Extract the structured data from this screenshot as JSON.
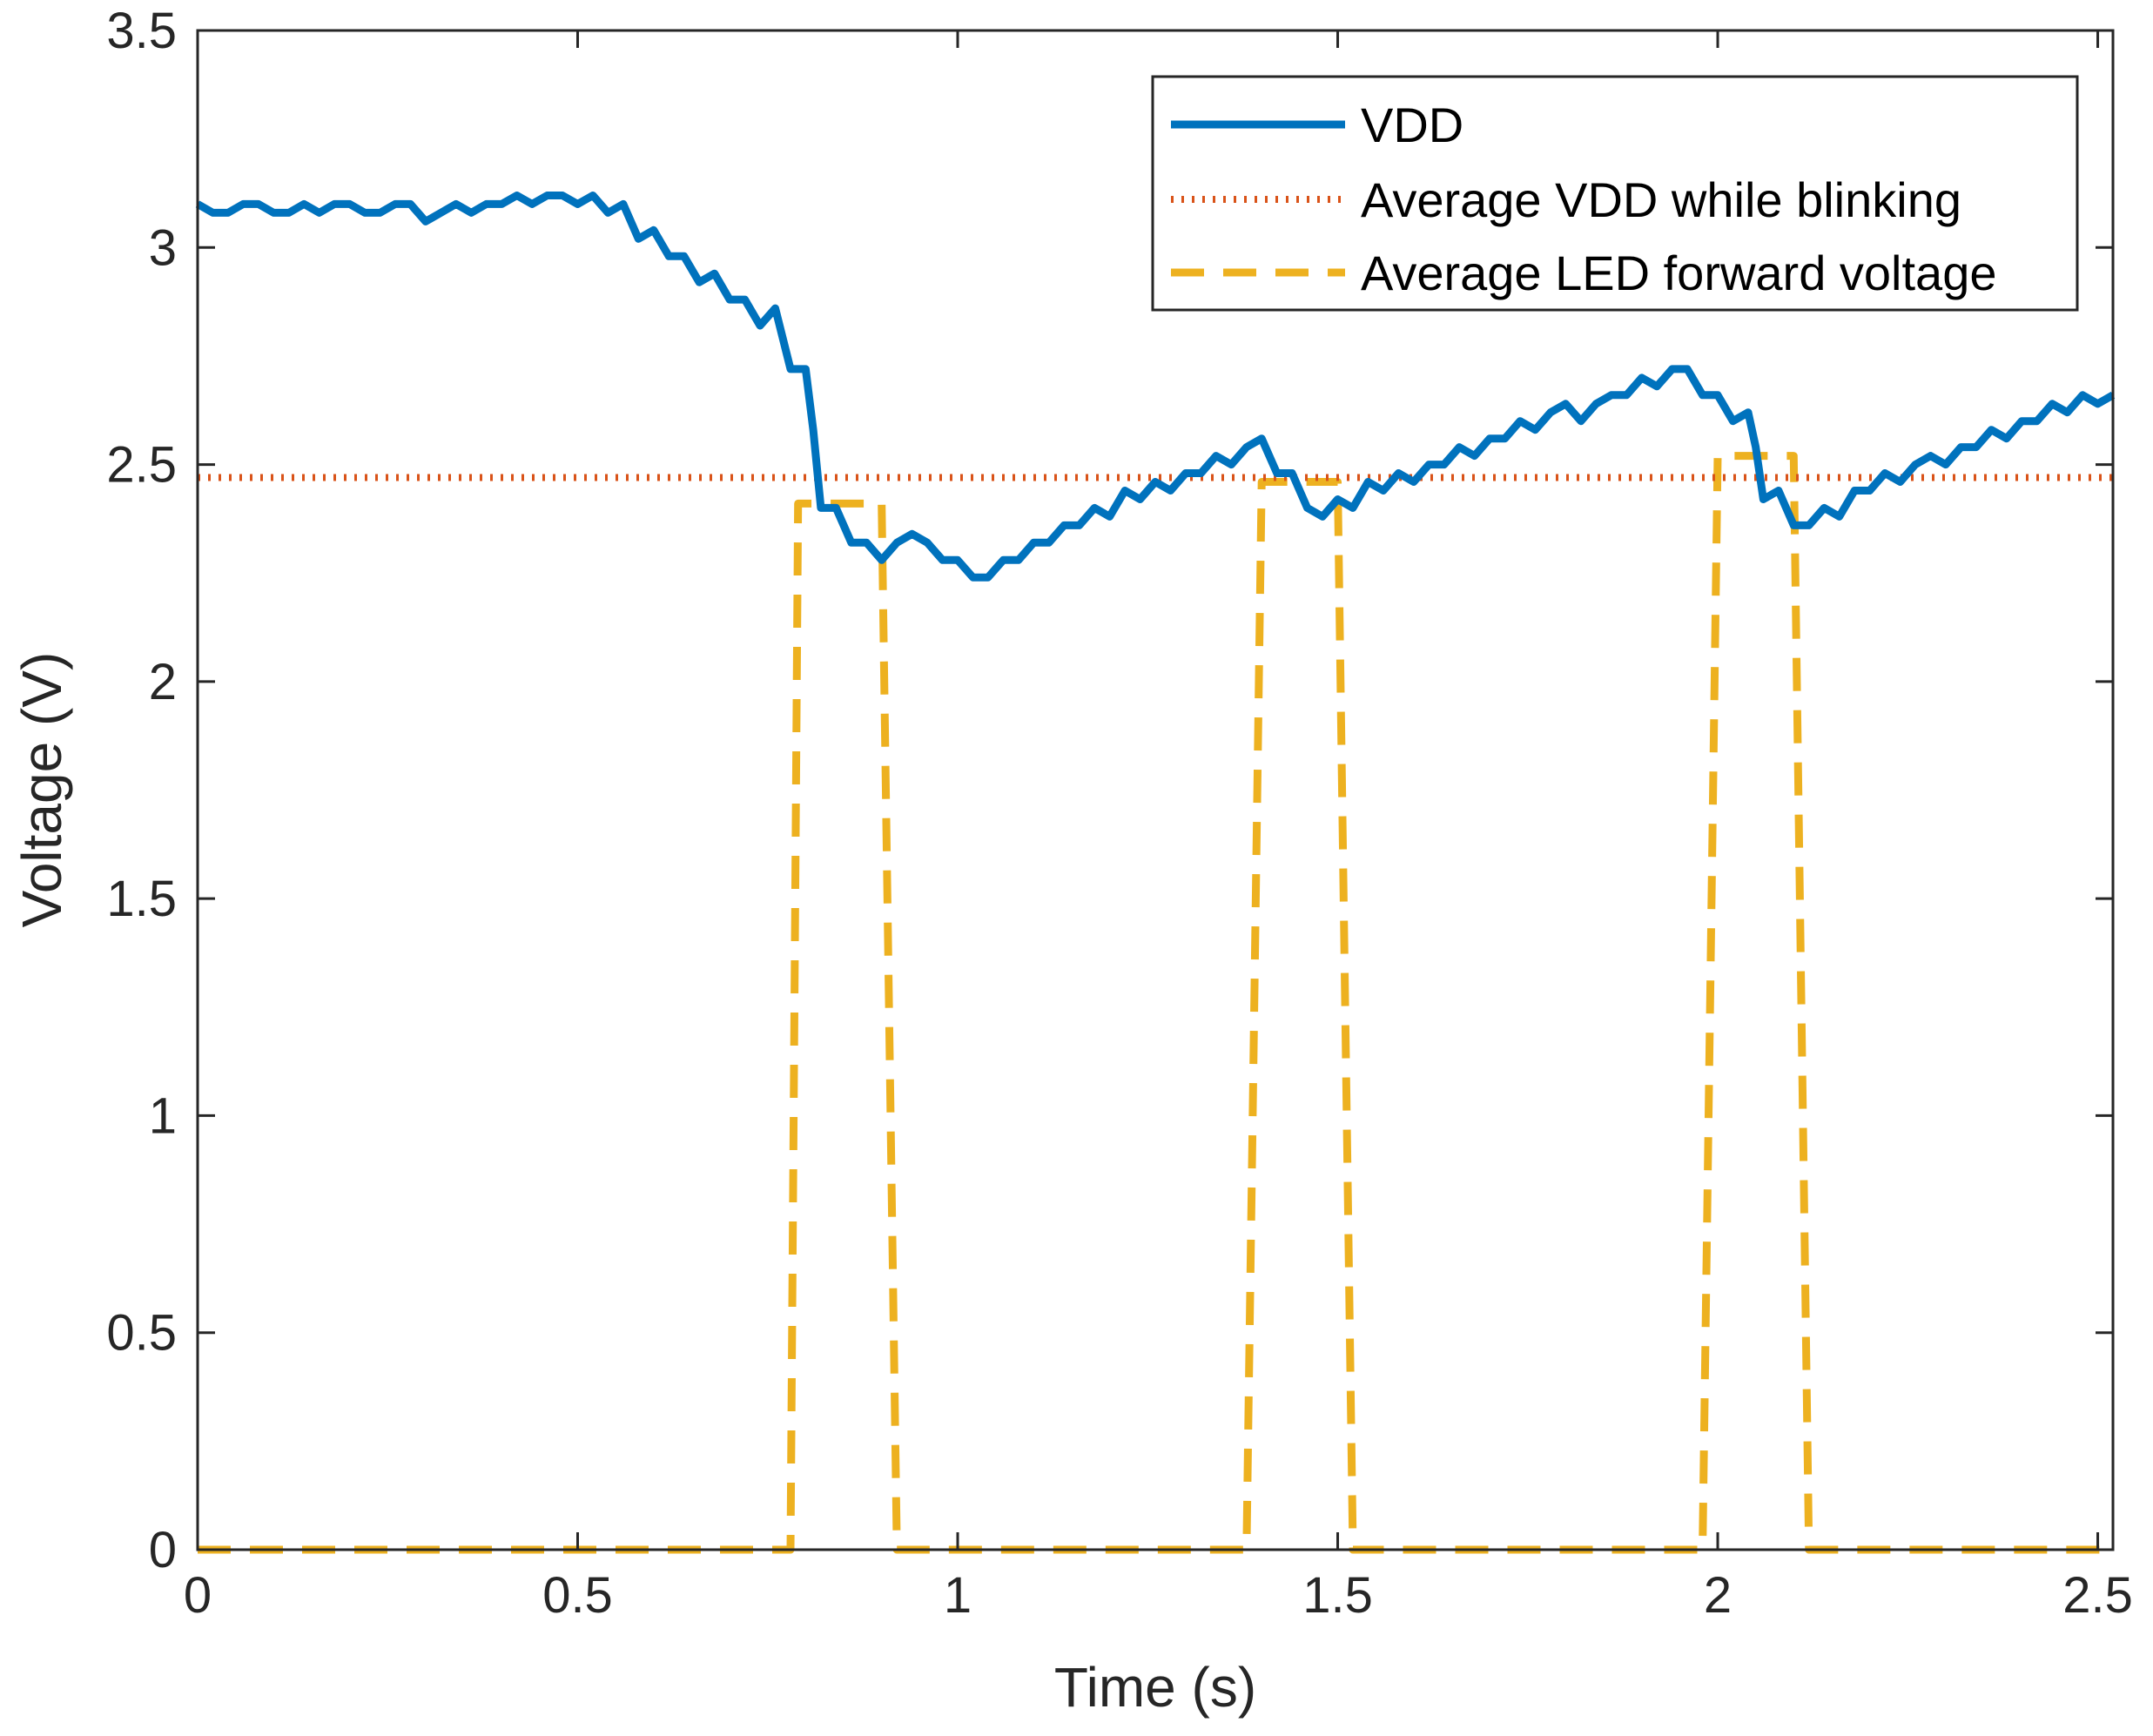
{
  "chart_data": {
    "type": "line",
    "title": "",
    "xlabel": "Time (s)",
    "ylabel": "Voltage (V)",
    "xlim": [
      0,
      2.52
    ],
    "ylim": [
      0,
      3.5
    ],
    "x_ticks": [
      0,
      0.5,
      1,
      1.5,
      2,
      2.5
    ],
    "x_tick_labels": [
      "0",
      "0.5",
      "1",
      "1.5",
      "2",
      "2.5"
    ],
    "y_ticks": [
      0,
      0.5,
      1,
      1.5,
      2,
      2.5,
      3,
      3.5
    ],
    "y_tick_labels": [
      "0",
      "0.5",
      "1",
      "1.5",
      "2",
      "2.5",
      "3",
      "3.5"
    ],
    "grid": false,
    "legend_position": "top-right",
    "series": [
      {
        "name": "VDD",
        "style": "solid",
        "color": "#0072BD",
        "x": [
          0,
          0.02,
          0.04,
          0.06,
          0.08,
          0.1,
          0.12,
          0.14,
          0.16,
          0.18,
          0.2,
          0.22,
          0.24,
          0.26,
          0.28,
          0.3,
          0.32,
          0.34,
          0.36,
          0.38,
          0.4,
          0.42,
          0.44,
          0.46,
          0.48,
          0.5,
          0.52,
          0.54,
          0.56,
          0.58,
          0.6,
          0.62,
          0.64,
          0.66,
          0.68,
          0.7,
          0.72,
          0.74,
          0.76,
          0.78,
          0.8,
          0.81,
          0.82,
          0.84,
          0.86,
          0.88,
          0.9,
          0.92,
          0.94,
          0.96,
          0.98,
          1.0,
          1.02,
          1.04,
          1.06,
          1.08,
          1.1,
          1.12,
          1.14,
          1.16,
          1.18,
          1.2,
          1.22,
          1.24,
          1.26,
          1.28,
          1.3,
          1.32,
          1.34,
          1.36,
          1.38,
          1.4,
          1.42,
          1.44,
          1.46,
          1.48,
          1.5,
          1.52,
          1.54,
          1.56,
          1.58,
          1.6,
          1.62,
          1.64,
          1.66,
          1.68,
          1.7,
          1.72,
          1.74,
          1.76,
          1.78,
          1.8,
          1.82,
          1.84,
          1.86,
          1.88,
          1.9,
          1.92,
          1.94,
          1.96,
          1.98,
          2.0,
          2.02,
          2.04,
          2.05,
          2.06,
          2.08,
          2.1,
          2.12,
          2.14,
          2.16,
          2.18,
          2.2,
          2.22,
          2.24,
          2.26,
          2.28,
          2.3,
          2.32,
          2.34,
          2.36,
          2.38,
          2.4,
          2.42,
          2.44,
          2.46,
          2.48,
          2.5,
          2.52
        ],
        "y": [
          3.1,
          3.08,
          3.08,
          3.1,
          3.1,
          3.08,
          3.08,
          3.1,
          3.08,
          3.1,
          3.1,
          3.08,
          3.08,
          3.1,
          3.1,
          3.06,
          3.08,
          3.1,
          3.08,
          3.1,
          3.1,
          3.12,
          3.1,
          3.12,
          3.12,
          3.1,
          3.12,
          3.08,
          3.1,
          3.02,
          3.04,
          2.98,
          2.98,
          2.92,
          2.94,
          2.88,
          2.88,
          2.82,
          2.86,
          2.72,
          2.72,
          2.58,
          2.4,
          2.4,
          2.32,
          2.32,
          2.28,
          2.32,
          2.34,
          2.32,
          2.28,
          2.28,
          2.24,
          2.24,
          2.28,
          2.28,
          2.32,
          2.32,
          2.36,
          2.36,
          2.4,
          2.38,
          2.44,
          2.42,
          2.46,
          2.44,
          2.48,
          2.48,
          2.52,
          2.5,
          2.54,
          2.56,
          2.48,
          2.48,
          2.4,
          2.38,
          2.42,
          2.4,
          2.46,
          2.44,
          2.48,
          2.46,
          2.5,
          2.5,
          2.54,
          2.52,
          2.56,
          2.56,
          2.6,
          2.58,
          2.62,
          2.64,
          2.6,
          2.64,
          2.66,
          2.66,
          2.7,
          2.68,
          2.72,
          2.72,
          2.66,
          2.66,
          2.6,
          2.62,
          2.54,
          2.42,
          2.44,
          2.36,
          2.36,
          2.4,
          2.38,
          2.44,
          2.44,
          2.48,
          2.46,
          2.5,
          2.52,
          2.5,
          2.54,
          2.54,
          2.58,
          2.56,
          2.6,
          2.6,
          2.64,
          2.62,
          2.66,
          2.64,
          2.66
        ]
      },
      {
        "name": "Average VDD while blinking",
        "style": "dotted",
        "color": "#D95319",
        "x": [
          0,
          2.52
        ],
        "y": [
          2.47,
          2.47
        ]
      },
      {
        "name": "Average LED forward voltage",
        "style": "dashed",
        "color": "#EDB120",
        "x": [
          0,
          0.78,
          0.79,
          0.9,
          0.92,
          1.38,
          1.4,
          1.5,
          1.52,
          1.98,
          2.0,
          2.1,
          2.12,
          2.52
        ],
        "y": [
          0,
          0,
          2.41,
          2.41,
          0,
          0,
          2.46,
          2.46,
          0,
          0,
          2.52,
          2.52,
          0,
          0
        ]
      }
    ]
  }
}
